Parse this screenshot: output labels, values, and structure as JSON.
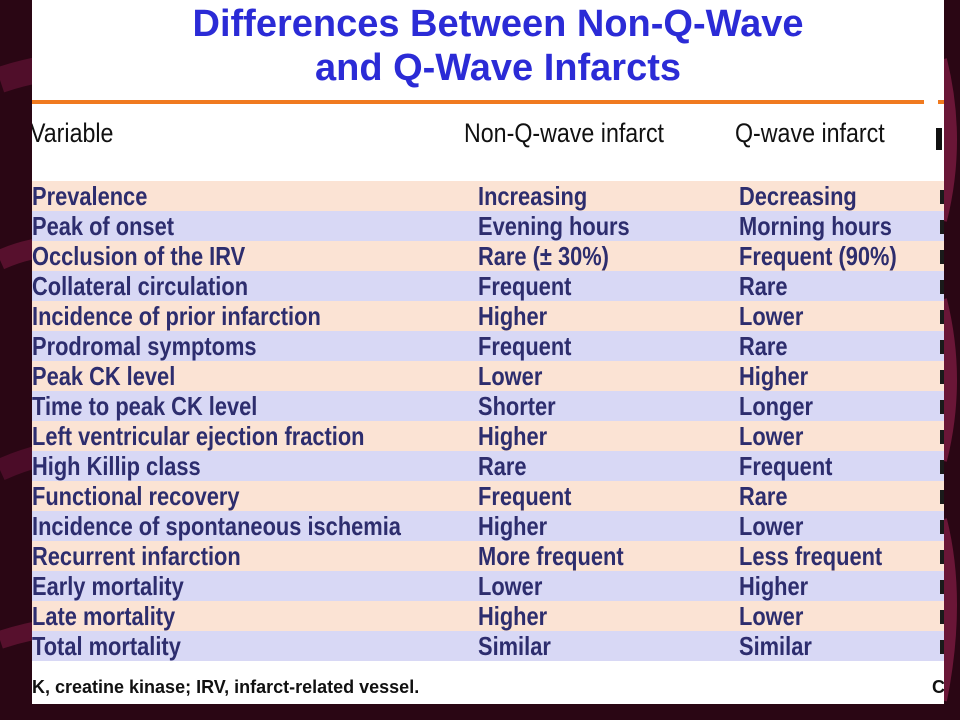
{
  "slide": {
    "title_line1": "Differences Between Non-Q-Wave",
    "title_line2": "and Q-Wave Infarcts",
    "headers": [
      "Variable",
      "Non-Q-wave infarct",
      "Q-wave infarct"
    ],
    "rows": [
      [
        "Prevalence",
        "Increasing",
        "Decreasing"
      ],
      [
        "Peak of onset",
        "Evening hours",
        "Morning hours"
      ],
      [
        "Occlusion of the IRV",
        "Rare (± 30%)",
        "Frequent (90%)"
      ],
      [
        "Collateral circulation",
        "Frequent",
        "Rare"
      ],
      [
        "Incidence of prior infarction",
        "Higher",
        "Lower"
      ],
      [
        "Prodromal symptoms",
        "Frequent",
        "Rare"
      ],
      [
        "Peak CK level",
        "Lower",
        "Higher"
      ],
      [
        "Time to peak CK level",
        "Shorter",
        "Longer"
      ],
      [
        "Left ventricular ejection fraction",
        "Higher",
        "Lower"
      ],
      [
        "High Killip class",
        "Rare",
        "Frequent"
      ],
      [
        "Functional recovery",
        "Frequent",
        "Rare"
      ],
      [
        "Incidence of spontaneous ischemia",
        "Higher",
        "Lower"
      ],
      [
        "Recurrent infarction",
        "More frequent",
        "Less frequent"
      ],
      [
        "Early mortality",
        "Lower",
        "Higher"
      ],
      [
        "Late mortality",
        "Higher",
        "Lower"
      ],
      [
        "Total mortality",
        "Similar",
        "Similar"
      ]
    ],
    "footnote": "K, creatine kinase; IRV, infarct-related vessel.",
    "footnote_edge": "C"
  },
  "colors": {
    "title": "#2b2bd6",
    "rule": "#f07a1f",
    "row_peach": "#fbe3d4",
    "row_lavender": "#d8d8f5",
    "cell_text": "#2d2d6e",
    "background": "#2a0614"
  }
}
